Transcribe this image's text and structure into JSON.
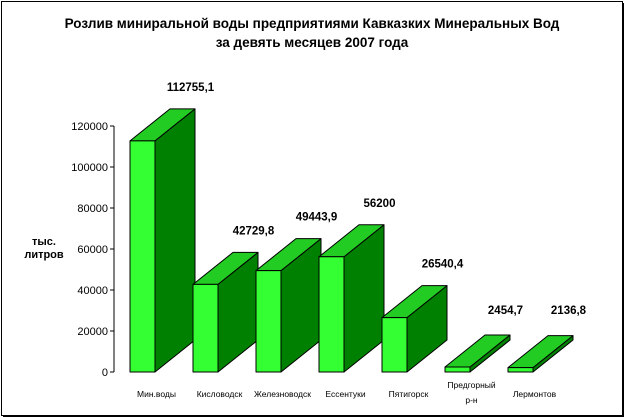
{
  "chart_data": {
    "type": "bar",
    "title_lines": [
      "Розлив миниральной воды предприятиями Кавказких Минеральных Вод",
      "за девять месяцев 2007 года"
    ],
    "ylabel": "тыс. литров",
    "xlabel": "",
    "ylim": [
      0,
      120000
    ],
    "yticks": [
      "0",
      "20000",
      "40000",
      "60000",
      "80000",
      "100000",
      "120000"
    ],
    "categories": [
      "Мин.воды",
      "Кисловодск",
      "Железноводск",
      "Ессентуки",
      "Пятигорск",
      "Предгорный р-н",
      "Лермонтов"
    ],
    "category_lines": [
      [
        "Мин.воды"
      ],
      [
        "Кисловодск"
      ],
      [
        "Железноводск"
      ],
      [
        "Ессентуки"
      ],
      [
        "Пятигорск"
      ],
      [
        "Предгорный",
        "р-н"
      ],
      [
        "Лермонтов"
      ]
    ],
    "values": [
      112755.1,
      42729.8,
      49443.9,
      56200,
      26540.4,
      2454.7,
      2136.8
    ],
    "data_labels": [
      "112755,1",
      "42729,8",
      "49443,9",
      "56200",
      "26540,4",
      "2454,7",
      "2136,8"
    ],
    "grid": false,
    "legend": "none",
    "style": "3d-bar",
    "colors": {
      "front": "#33ff33",
      "side": "#008000",
      "top": "#22cc22",
      "axis": "#000000"
    }
  }
}
